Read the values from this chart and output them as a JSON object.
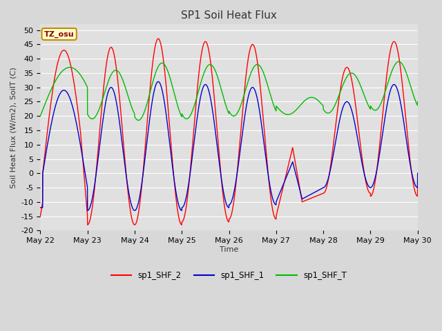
{
  "title": "SP1 Soil Heat Flux",
  "ylabel": "Soil Heat Flux (W/m2), SoilT (C)",
  "xlabel": "Time",
  "ylim": [
    -20,
    52
  ],
  "yticks": [
    -20,
    -15,
    -10,
    -5,
    0,
    5,
    10,
    15,
    20,
    25,
    30,
    35,
    40,
    45,
    50
  ],
  "fig_bg_color": "#d8d8d8",
  "plot_bg": "#e0e0e0",
  "grid_color": "#ffffff",
  "tz_label": "TZ_osu",
  "tz_bg": "#ffffcc",
  "tz_border": "#cc8800",
  "legend_labels": [
    "sp1_SHF_2",
    "sp1_SHF_1",
    "sp1_SHF_T"
  ],
  "series_colors": [
    "#ff0000",
    "#0000cc",
    "#00bb00"
  ],
  "xtick_labels": [
    "May 22",
    "May 23",
    "May 24",
    "May 25",
    "May 26",
    "May 27",
    "May 28",
    "May 29",
    "May 30"
  ]
}
